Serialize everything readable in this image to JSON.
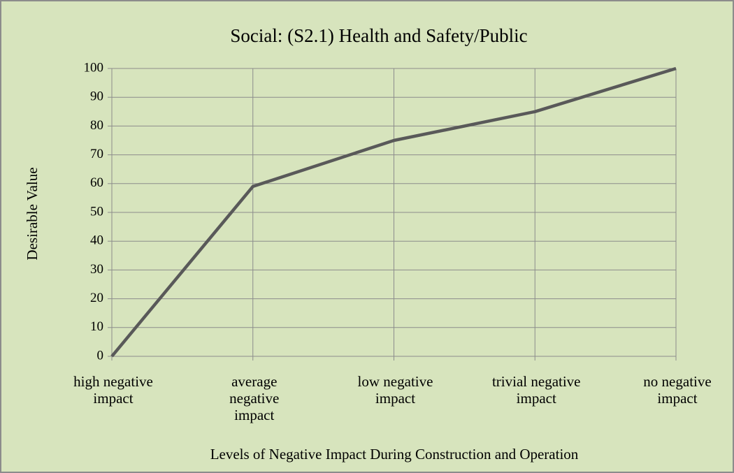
{
  "chart_data": {
    "type": "line",
    "title": "Social: (S2.1) Health and Safety/Public",
    "x_label": "Levels of  Negative Impact During Construction and Operation",
    "y_label": "Desirable Value",
    "categories": [
      "high negative impact",
      "average negative impact",
      "low negative impact",
      "trivial negative impact",
      "no negative impact"
    ],
    "series": [
      {
        "name": "Desirable Value",
        "color": "#595959",
        "values": [
          0,
          59,
          75,
          85,
          100
        ]
      }
    ],
    "ylim": [
      0,
      100
    ],
    "yticks": [
      0,
      10,
      20,
      30,
      40,
      50,
      60,
      70,
      80,
      90,
      100
    ],
    "grid": true
  }
}
